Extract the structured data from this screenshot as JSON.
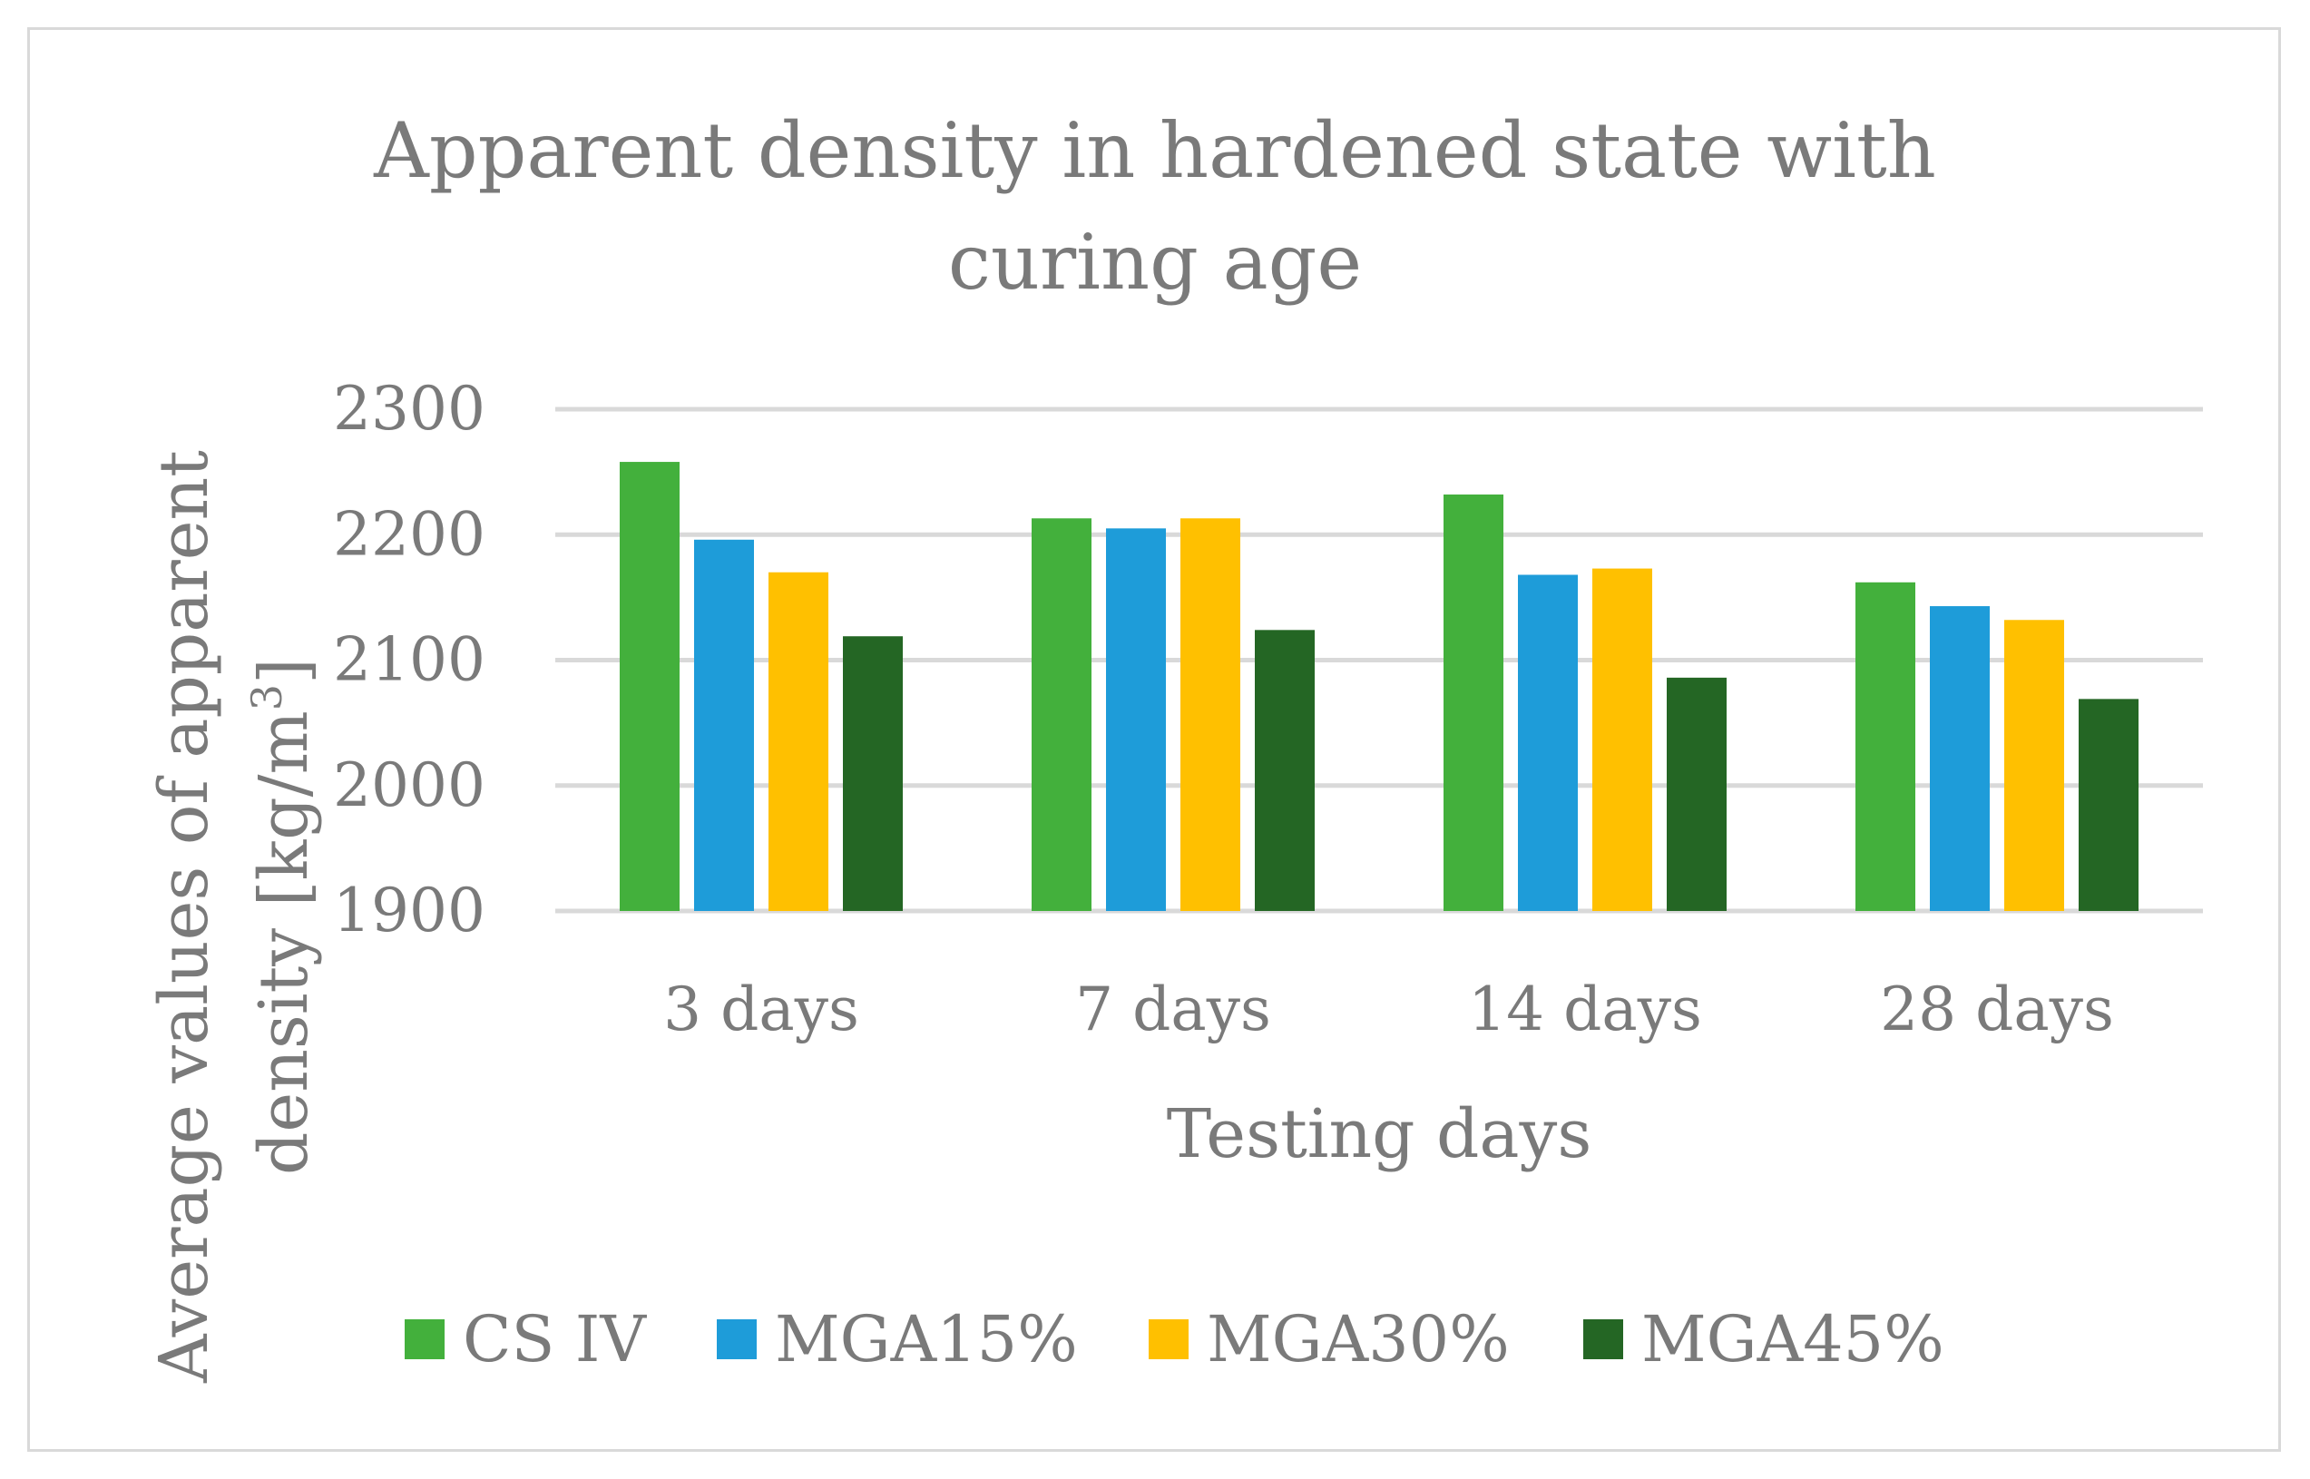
{
  "chart_data": {
    "type": "bar",
    "title_lines": [
      "Apparent density in hardened state with",
      "curing age"
    ],
    "xlabel": "Testing days",
    "ylabel_lines": [
      "Average values of apparent",
      "density [kg/m",
      "3",
      "]"
    ],
    "categories": [
      "3 days",
      "7 days",
      "14 days",
      "28 days"
    ],
    "ylim": [
      1900,
      2300
    ],
    "yticks": [
      1900,
      2000,
      2100,
      2200,
      2300
    ],
    "grid": true,
    "legend_position": "bottom",
    "series": [
      {
        "name": "CS IV",
        "color": "#43b03c",
        "values": [
          2258,
          2213,
          2232,
          2162
        ]
      },
      {
        "name": "MGA15%",
        "color": "#1e9cd9",
        "values": [
          2196,
          2205,
          2168,
          2143
        ]
      },
      {
        "name": "MGA30%",
        "color": "#ffc000",
        "values": [
          2170,
          2213,
          2173,
          2132
        ]
      },
      {
        "name": "MGA45%",
        "color": "#246624",
        "values": [
          2119,
          2124,
          2086,
          2069
        ]
      }
    ]
  }
}
